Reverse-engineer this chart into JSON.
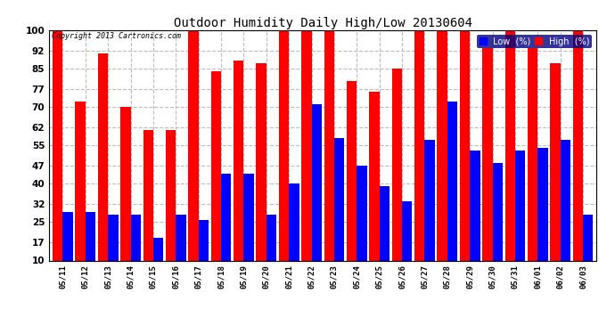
{
  "title": "Outdoor Humidity Daily High/Low 20130604",
  "copyright": "Copyright 2013 Cartronics.com",
  "ylim": [
    10,
    100
  ],
  "yticks": [
    10,
    17,
    25,
    32,
    40,
    47,
    55,
    62,
    70,
    77,
    85,
    92,
    100
  ],
  "dates": [
    "05/11",
    "05/12",
    "05/13",
    "05/14",
    "05/15",
    "05/16",
    "05/17",
    "05/18",
    "05/19",
    "05/20",
    "05/21",
    "05/22",
    "05/23",
    "05/24",
    "05/25",
    "05/26",
    "05/27",
    "05/28",
    "05/29",
    "05/30",
    "05/31",
    "06/01",
    "06/02",
    "06/03"
  ],
  "high": [
    100,
    72,
    91,
    70,
    61,
    61,
    100,
    84,
    88,
    87,
    100,
    100,
    100,
    80,
    76,
    85,
    100,
    100,
    100,
    93,
    100,
    93,
    87,
    100
  ],
  "low": [
    29,
    29,
    28,
    28,
    19,
    28,
    26,
    44,
    44,
    28,
    40,
    71,
    58,
    47,
    39,
    33,
    57,
    72,
    53,
    48,
    53,
    54,
    57,
    28
  ],
  "high_color": "#ff0000",
  "low_color": "#0000ff",
  "bg_color": "#ffffff",
  "grid_color": "#bbbbbb",
  "legend_low_label": "Low  (%)",
  "legend_high_label": "High  (%)"
}
